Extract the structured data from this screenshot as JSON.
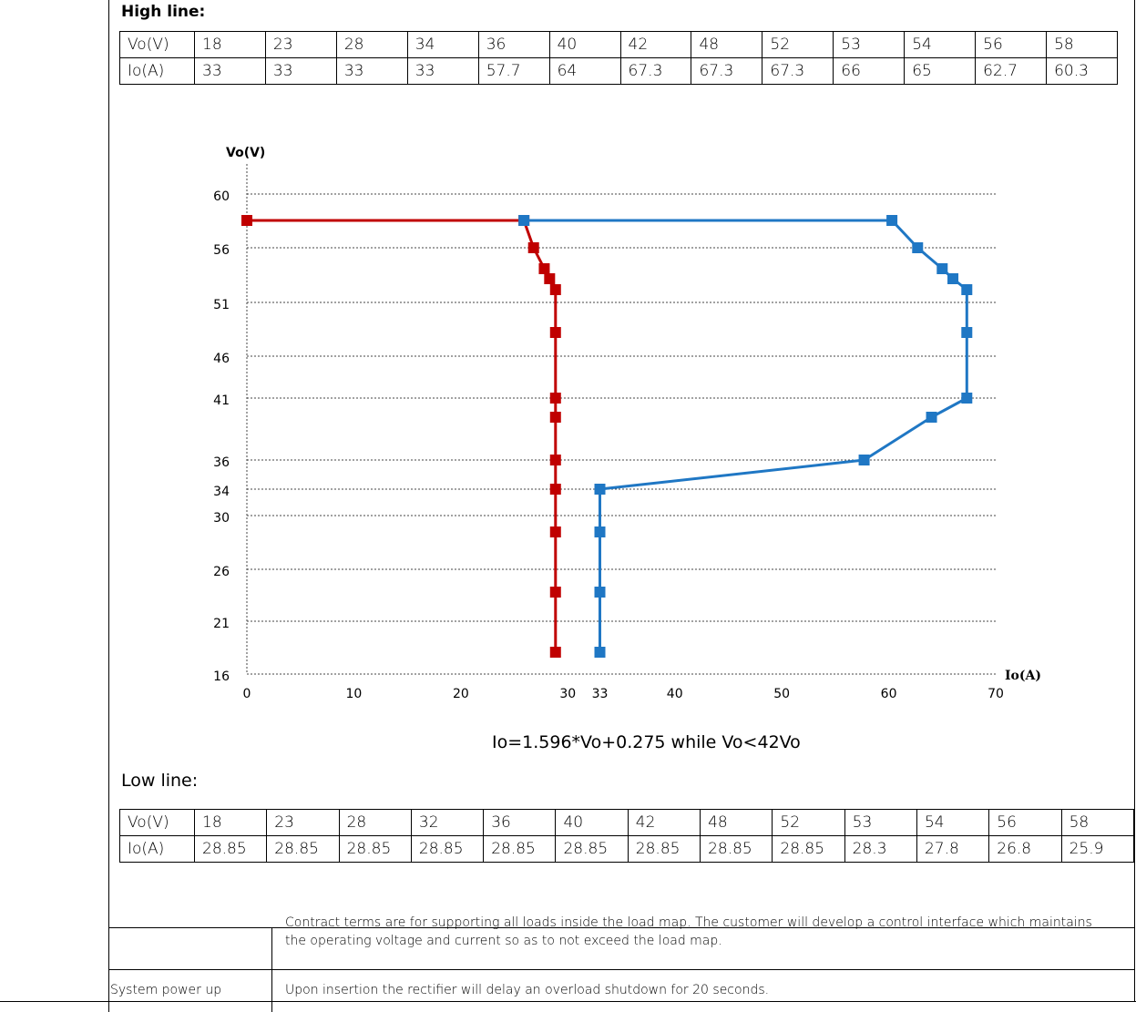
{
  "high_line": {
    "heading": "High line:",
    "row_labels": [
      "Vo(V)",
      "Io(A)"
    ],
    "vo": [
      "18",
      "23",
      "28",
      "34",
      "36",
      "40",
      "42",
      "48",
      "52",
      "53",
      "54",
      "56",
      "58"
    ],
    "io": [
      "33",
      "33",
      "33",
      "33",
      "57.7",
      "64",
      "67.3",
      "67.3",
      "67.3",
      "66",
      "65",
      "62.7",
      "60.3"
    ]
  },
  "low_line": {
    "heading": "Low line:",
    "row_labels": [
      "Vo(V)",
      "Io(A)"
    ],
    "vo": [
      "18",
      "23",
      "28",
      "32",
      "36",
      "40",
      "42",
      "48",
      "52",
      "53",
      "54",
      "56",
      "58"
    ],
    "io": [
      "28.85",
      "28.85",
      "28.85",
      "28.85",
      "28.85",
      "28.85",
      "28.85",
      "28.85",
      "28.85",
      "28.3",
      "27.8",
      "26.8",
      "25.9"
    ]
  },
  "chart_data": {
    "type": "line",
    "xlabel": "Io(A)",
    "ylabel": "Vo(V)",
    "x_ticks": [
      "0",
      "10",
      "20",
      "30",
      "33",
      "40",
      "50",
      "60",
      "70"
    ],
    "y_ticks": [
      "16",
      "21",
      "26",
      "30",
      "34",
      "36",
      "41",
      "46",
      "51",
      "56",
      "60"
    ],
    "xlim": [
      0,
      70
    ],
    "grid": "horizontal dotted",
    "series": [
      {
        "color": "#c00000",
        "points": [
          [
            0,
            58
          ],
          [
            25.9,
            58
          ],
          [
            26.8,
            56
          ],
          [
            27.8,
            54
          ],
          [
            28.3,
            53
          ],
          [
            28.85,
            52
          ],
          [
            28.85,
            48
          ],
          [
            28.85,
            42
          ],
          [
            28.85,
            40
          ],
          [
            28.85,
            36
          ],
          [
            28.85,
            32
          ],
          [
            28.85,
            28
          ],
          [
            28.85,
            23
          ],
          [
            28.85,
            18
          ]
        ]
      },
      {
        "color": "#1f77c4",
        "points": [
          [
            33,
            18
          ],
          [
            33,
            23
          ],
          [
            33,
            28
          ],
          [
            33,
            34
          ],
          [
            57.7,
            36
          ],
          [
            64,
            40
          ],
          [
            67.3,
            42
          ],
          [
            67.3,
            48
          ],
          [
            67.3,
            52
          ],
          [
            66,
            53
          ],
          [
            65,
            54
          ],
          [
            62.7,
            56
          ],
          [
            60.3,
            58
          ],
          [
            25.9,
            58
          ]
        ]
      }
    ]
  },
  "formula": "Io=1.596*Vo+0.275 while Vo<42Vo",
  "notes": {
    "contract": "Contract terms are for supporting all loads inside the load map.  The customer will develop a control interface which maintains the operating voltage and current so as to not exceed the load map.",
    "power_up_label": "System power up",
    "power_up_text": "Upon insertion the rectifier will delay an overload shutdown for 20 seconds."
  }
}
